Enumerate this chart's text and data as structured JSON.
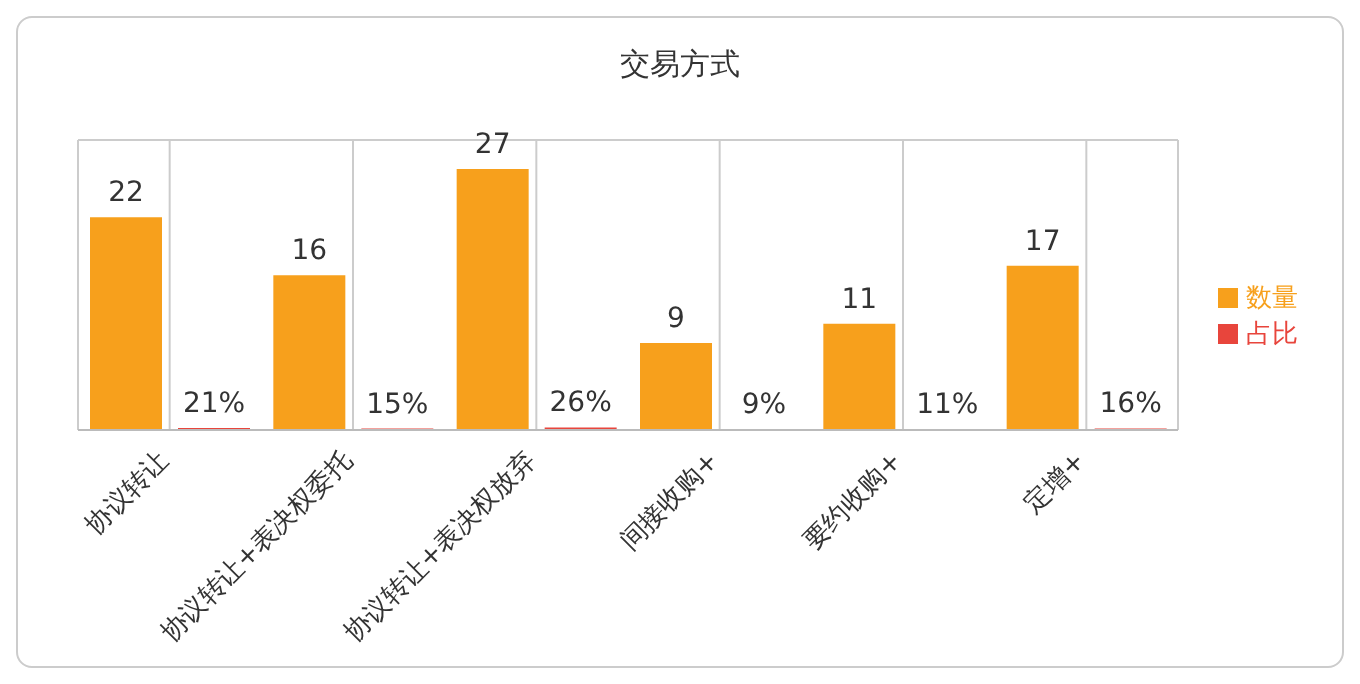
{
  "chart_data": {
    "type": "bar",
    "title": "交易方式",
    "categories": [
      "协议转让",
      "协议转让+表决权委托",
      "协议转让+表决权放弃",
      "间接收购+",
      "要约收购+",
      "定增+"
    ],
    "series": [
      {
        "name": "数量",
        "color": "#f7a01c",
        "values": [
          22,
          16,
          27,
          9,
          11,
          17
        ],
        "value_labels": [
          "22",
          "16",
          "27",
          "9",
          "11",
          "17"
        ]
      },
      {
        "name": "占比",
        "color": "#e8453c",
        "values": [
          0.21,
          0.15,
          0.26,
          0.09,
          0.11,
          0.16
        ],
        "value_labels": [
          "21%",
          "15%",
          "26%",
          "9%",
          "11%",
          "16%"
        ]
      }
    ],
    "ylim": [
      0,
      30
    ],
    "tick_labels": "x",
    "grid": true,
    "legend": "right"
  }
}
